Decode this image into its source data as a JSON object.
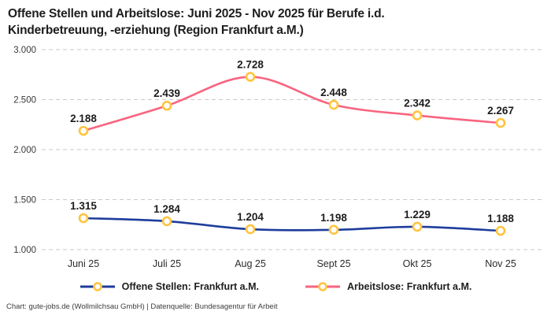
{
  "title": {
    "line1": "Offene Stellen und Arbeitslose: Juni 2025 - Nov 2025 für Berufe i.d.",
    "line2": "Kinderbetreuung, -erziehung (Region Frankfurt a.M.)"
  },
  "footer": "Chart: gute-jobs.de (Wollmilchsau GmbH) | Datenquelle: Bundesagentur für Arbeit",
  "chart_data": {
    "type": "line",
    "title": "Offene Stellen und Arbeitslose: Juni 2025 - Nov 2025 für Berufe i.d. Kinderbetreuung, -erziehung (Region Frankfurt a.M.)",
    "categories": [
      "Juni 25",
      "Juli 25",
      "Aug 25",
      "Sept 25",
      "Okt 25",
      "Nov 25"
    ],
    "series": [
      {
        "name": "Offene Stellen: Frankfurt a.M.",
        "color": "#1e3d9b",
        "values": [
          1315,
          1284,
          1204,
          1198,
          1229,
          1188
        ],
        "labels": [
          "1.315",
          "1.284",
          "1.204",
          "1.198",
          "1.229",
          "1.188"
        ]
      },
      {
        "name": "Arbeitslose: Frankfurt a.M.",
        "color": "#f8647f",
        "values": [
          2188,
          2439,
          2728,
          2448,
          2342,
          2267
        ],
        "labels": [
          "2.188",
          "2.439",
          "2.728",
          "2.448",
          "2.342",
          "2.267"
        ]
      }
    ],
    "marker": {
      "stroke": "#ffc43d",
      "fill": "#ffffff"
    },
    "y_axis": {
      "range": [
        1000,
        3000
      ],
      "ticks": [
        {
          "value": 3000,
          "label": "3.000"
        },
        {
          "value": 2500,
          "label": "2.500"
        },
        {
          "value": 2000,
          "label": "2.000"
        },
        {
          "value": 1500,
          "label": "1.500"
        },
        {
          "value": 1000,
          "label": "1.000"
        }
      ]
    },
    "grid": {
      "color": "#c9c9c9",
      "dash": "5 4"
    },
    "legend_position": "bottom"
  }
}
